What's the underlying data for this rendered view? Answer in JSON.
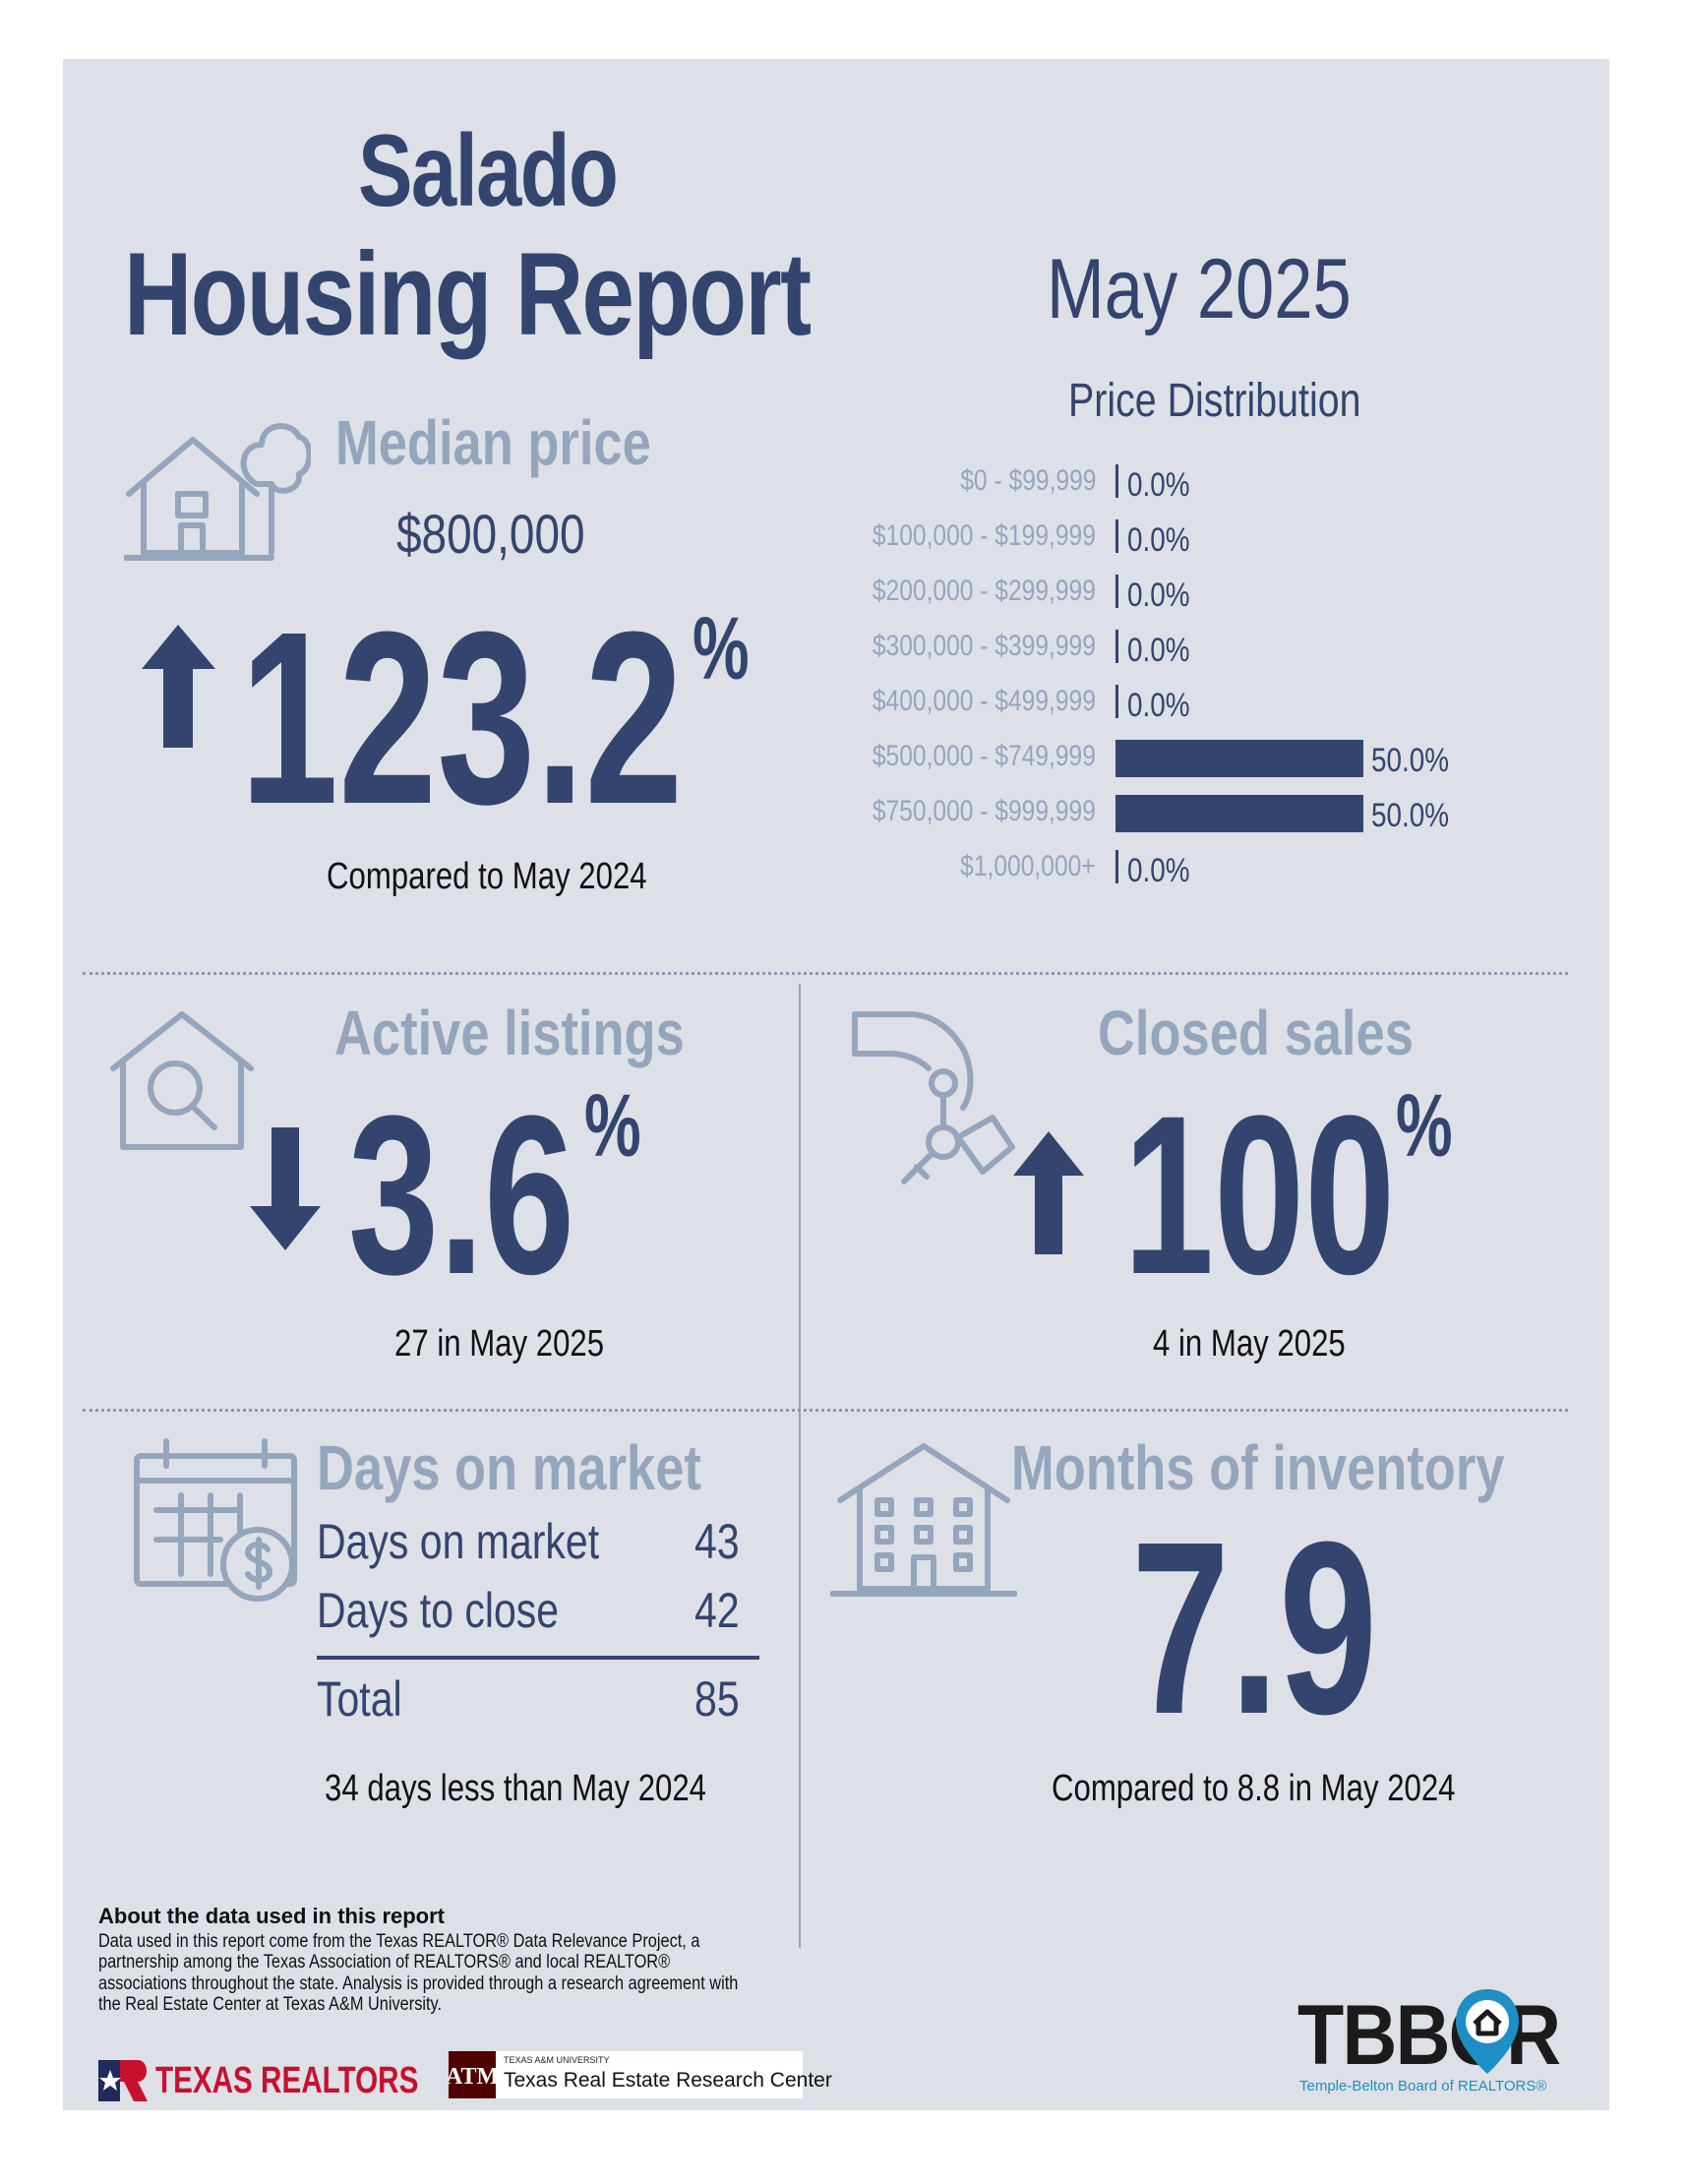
{
  "header": {
    "city": "Salado",
    "report_title": "Housing Report",
    "period": "May 2025"
  },
  "median_price": {
    "title": "Median price",
    "value": "$800,000",
    "direction": "up",
    "change": "123.2",
    "unit": "%",
    "caption": "Compared to May 2024"
  },
  "price_distribution": {
    "title": "Price Distribution",
    "rows": [
      {
        "label": "$0 - $99,999",
        "value": "0.0%",
        "share": 0.0
      },
      {
        "label": "$100,000 - $199,999",
        "value": "0.0%",
        "share": 0.0
      },
      {
        "label": "$200,000 - $299,999",
        "value": "0.0%",
        "share": 0.0
      },
      {
        "label": "$300,000 - $399,999",
        "value": "0.0%",
        "share": 0.0
      },
      {
        "label": "$400,000 - $499,999",
        "value": "0.0%",
        "share": 0.0
      },
      {
        "label": "$500,000 - $749,999",
        "value": "50.0%",
        "share": 50.0
      },
      {
        "label": "$750,000 - $999,999",
        "value": "50.0%",
        "share": 50.0
      },
      {
        "label": "$1,000,000+",
        "value": "0.0%",
        "share": 0.0
      }
    ]
  },
  "active_listings": {
    "title": "Active listings",
    "direction": "down",
    "change": "3.6",
    "unit": "%",
    "caption": "27 in May 2025"
  },
  "closed_sales": {
    "title": "Closed sales",
    "direction": "up",
    "change": "100",
    "unit": "%",
    "caption": "4 in May 2025"
  },
  "days_on_market": {
    "title": "Days on market",
    "rows": [
      {
        "label": "Days on market",
        "value": "43"
      },
      {
        "label": "Days to close",
        "value": "42"
      }
    ],
    "total_label": "Total",
    "total_value": "85",
    "caption": "34 days less than May 2024"
  },
  "months_inventory": {
    "title": "Months of inventory",
    "value": "7.9",
    "caption": "Compared to 8.8 in May 2024"
  },
  "about": {
    "title": "About the data used in this report",
    "text": "Data used in this report come from the Texas REALTOR® Data Relevance Project, a partnership among the Texas Association of REALTORS® and local REALTOR® associations throughout the state. Analysis is provided through a research agreement with the Real Estate Center at Texas A&M University."
  },
  "logos": {
    "texas_realtors": "TEXAS REALTORS",
    "tamu_small": "TEXAS A&M UNIVERSITY",
    "tamu_center": "Texas Real Estate Research Center",
    "tbbor": "TBBOR",
    "tbbor_sub": "Temple-Belton Board of REALTORS®"
  },
  "colors": {
    "navy": "#33456f",
    "light": "#94a6bd",
    "panel": "#dde0e6",
    "tamu_maroon": "#500000",
    "texas_red": "#c8102e",
    "tbbor_blue": "#1d8fc4"
  },
  "icons": [
    "house-tree-icon",
    "arrow-up-icon",
    "house-search-icon",
    "arrow-down-icon",
    "hand-keys-icon",
    "calendar-dollar-icon",
    "apartment-building-icon"
  ]
}
